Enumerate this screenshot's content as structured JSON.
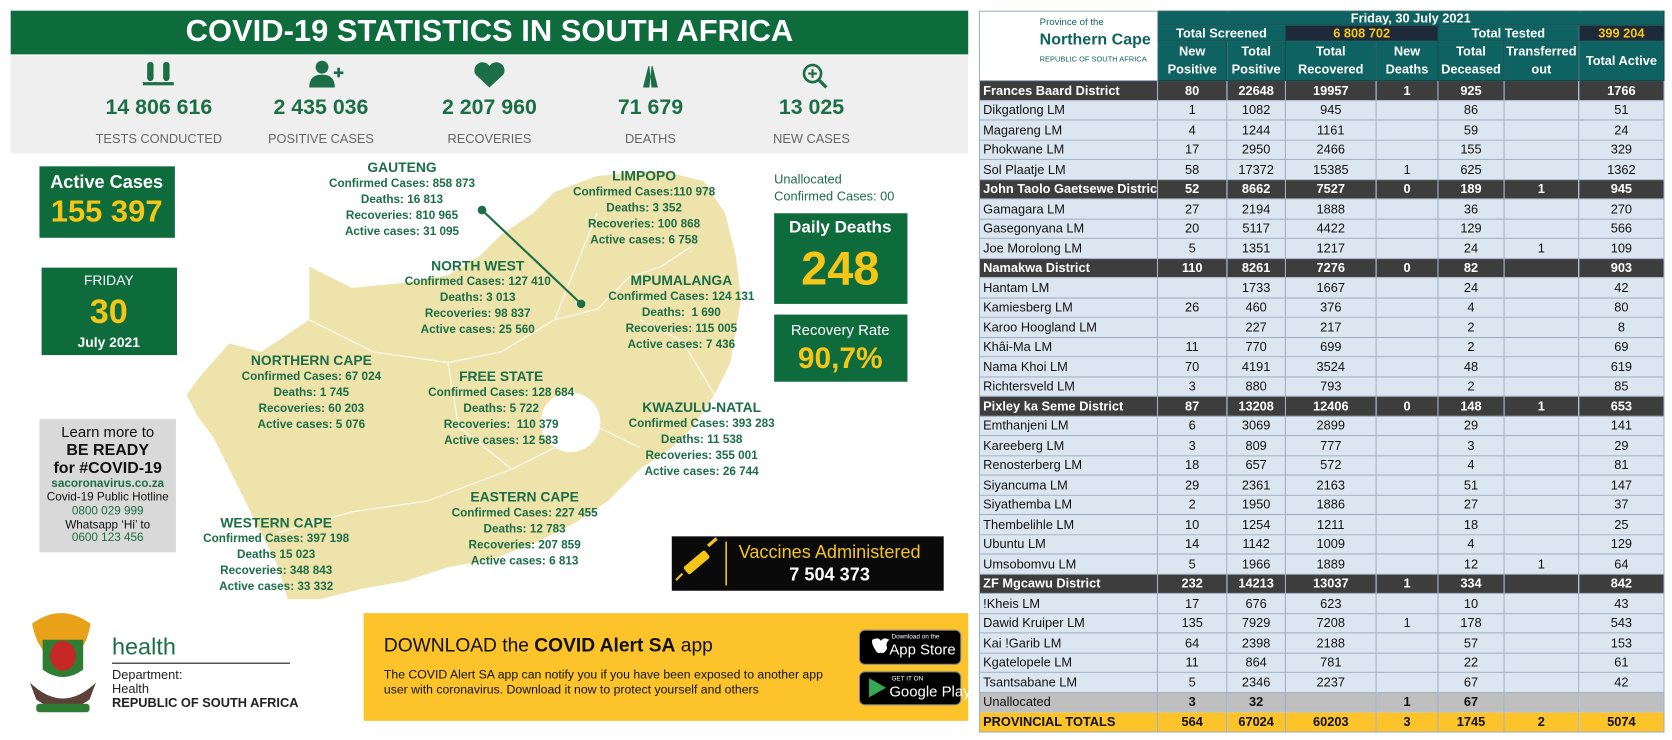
{
  "title": "COVID-19 STATISTICS IN SOUTH AFRICA",
  "stats": [
    {
      "value": "14 806 616",
      "label": "TESTS CONDUCTED"
    },
    {
      "value": "2 435 036",
      "label": "POSITIVE CASES"
    },
    {
      "value": "2 207 960",
      "label": "RECOVERIES"
    },
    {
      "value": "71 679",
      "label": "DEATHS"
    },
    {
      "value": "13 025",
      "label": "NEW CASES"
    }
  ],
  "active_cases": {
    "label": "Active Cases",
    "value": "155 397"
  },
  "date": {
    "weekday": "FRIDAY",
    "day": "30",
    "month_year": "July 2021"
  },
  "unallocated": [
    "Unallocated",
    "Confirmed Cases: 00"
  ],
  "daily_deaths": {
    "label": "Daily Deaths",
    "value": "248"
  },
  "recovery_rate": {
    "label": "Recovery Rate",
    "value": "90,7%"
  },
  "provinces": [
    {
      "name": "GAUTENG",
      "lines": [
        "Confirmed Cases: 858 873",
        "Deaths: 16 813",
        "Recoveries: 810 965",
        "Active cases: 31 095"
      ]
    },
    {
      "name": "LIMPOPO",
      "lines": [
        "Confirmed Cases:110 978",
        "Deaths: 3 352",
        "Recoveries: 100 868",
        "Active cases: 6 758"
      ]
    },
    {
      "name": "NORTH WEST",
      "lines": [
        "Confirmed Cases: 127 410",
        "Deaths: 3 013",
        "Recoveries: 98 837",
        "Active cases: 25 560"
      ]
    },
    {
      "name": "MPUMALANGA",
      "lines": [
        "Confirmed Cases: 124 131",
        "Deaths:  1 690",
        "Recoveries: 115 005",
        "Active cases: 7 436"
      ]
    },
    {
      "name": "NORTHERN CAPE",
      "lines": [
        "Confirmed Cases: 67 024",
        "Deaths: 1 745",
        "Recoveries: 60 203",
        "Active cases: 5 076"
      ]
    },
    {
      "name": "FREE STATE",
      "lines": [
        "Confirmed Cases: 128 684",
        "Deaths: 5 722",
        "Recoveries:  110 379",
        "Active cases: 12 583"
      ]
    },
    {
      "name": "KWAZULU-NATAL",
      "lines": [
        "Confirmed Cases: 393 283",
        "Deaths: 11 538",
        "Recoveries: 355 001",
        "Active cases: 26 744"
      ]
    },
    {
      "name": "EASTERN CAPE",
      "lines": [
        "Confirmed Cases: 227 455",
        "Deaths: 12 783",
        "Recoveries: 207 859",
        "Active cases: 6 813"
      ]
    },
    {
      "name": "WESTERN CAPE",
      "lines": [
        "Confirmed Cases: 397 198",
        "Deaths 15 023",
        "Recoveries: 348 843",
        "Active cases: 33 332"
      ]
    }
  ],
  "learn_more": [
    "Learn more to",
    "BE READY",
    "for #COVID-19",
    "sacoronavirus.co.za",
    "Covid-19 Public Hotline",
    "0800 029 999",
    "Whatsapp ‘Hi’ to",
    "0600 123 456"
  ],
  "vaccines": {
    "label": "Vaccines Administered",
    "value": "7 504 373"
  },
  "department": {
    "health": "health",
    "lines": [
      "Department:",
      "Health",
      "REPUBLIC OF SOUTH AFRICA"
    ]
  },
  "app_banner": {
    "lead": "DOWNLOAD the",
    "app_name": "COVID Alert SA",
    "tail": "app",
    "text": [
      "The COVID Alert SA app can notify you if you have been exposed to another app",
      "user with coronavirus. Download it now to protect yourself and others"
    ],
    "buttons": [
      {
        "small": "Download on the",
        "big": "App Store"
      },
      {
        "small": "GET IT ON",
        "big": "Google Play"
      }
    ]
  },
  "table": {
    "logo": [
      "Province of the",
      "Northern Cape",
      "REPUBLIC OF SOUTH AFRICA"
    ],
    "date": "Friday, 30 July 2021",
    "screened": {
      "label": "Total Screened",
      "value": "6 808 702"
    },
    "tested": {
      "label": "Total Tested",
      "value": "399 204"
    },
    "columns": [
      "New Positive",
      "Total Positive",
      "Total Recovered",
      "New Deaths",
      "Total Deceased",
      "Transferred out",
      "Total Active"
    ],
    "rows": [
      {
        "name": "Frances Baard District",
        "kind": "district",
        "cells": [
          80,
          22648,
          19957,
          1,
          925,
          null,
          1766
        ]
      },
      {
        "name": "Dikgatlong LM",
        "kind": "lm",
        "cells": [
          1,
          1082,
          945,
          null,
          86,
          null,
          51
        ]
      },
      {
        "name": "Magareng LM",
        "kind": "lm",
        "cells": [
          4,
          1244,
          1161,
          null,
          59,
          null,
          24
        ]
      },
      {
        "name": "Phokwane LM",
        "kind": "lm",
        "cells": [
          17,
          2950,
          2466,
          null,
          155,
          null,
          329
        ]
      },
      {
        "name": "Sol Plaatje LM",
        "kind": "lm",
        "cells": [
          58,
          17372,
          15385,
          1,
          625,
          null,
          1362
        ]
      },
      {
        "name": "John Taolo Gaetsewe District",
        "kind": "district",
        "cells": [
          52,
          8662,
          7527,
          0,
          189,
          1,
          945
        ]
      },
      {
        "name": "Gamagara LM",
        "kind": "lm",
        "cells": [
          27,
          2194,
          1888,
          null,
          36,
          null,
          270
        ]
      },
      {
        "name": "Gasegonyana LM",
        "kind": "lm",
        "cells": [
          20,
          5117,
          4422,
          null,
          129,
          null,
          566
        ]
      },
      {
        "name": "Joe Morolong LM",
        "kind": "lm",
        "cells": [
          5,
          1351,
          1217,
          null,
          24,
          1,
          109
        ]
      },
      {
        "name": "Namakwa District",
        "kind": "district",
        "cells": [
          110,
          8261,
          7276,
          0,
          82,
          null,
          903
        ]
      },
      {
        "name": "Hantam LM",
        "kind": "lm",
        "cells": [
          null,
          1733,
          1667,
          null,
          24,
          null,
          42
        ]
      },
      {
        "name": "Kamiesberg LM",
        "kind": "lm",
        "cells": [
          26,
          460,
          376,
          null,
          4,
          null,
          80
        ]
      },
      {
        "name": "Karoo Hoogland LM",
        "kind": "lm",
        "cells": [
          null,
          227,
          217,
          null,
          2,
          null,
          8
        ]
      },
      {
        "name": "Khâi-Ma LM",
        "kind": "lm",
        "cells": [
          11,
          770,
          699,
          null,
          2,
          null,
          69
        ]
      },
      {
        "name": "Nama Khoi LM",
        "kind": "lm",
        "cells": [
          70,
          4191,
          3524,
          null,
          48,
          null,
          619
        ]
      },
      {
        "name": "Richtersveld LM",
        "kind": "lm",
        "cells": [
          3,
          880,
          793,
          null,
          2,
          null,
          85
        ]
      },
      {
        "name": "Pixley ka Seme District",
        "kind": "district",
        "cells": [
          87,
          13208,
          12406,
          0,
          148,
          1,
          653
        ]
      },
      {
        "name": "Emthanjeni LM",
        "kind": "lm",
        "cells": [
          6,
          3069,
          2899,
          null,
          29,
          null,
          141
        ]
      },
      {
        "name": "Kareeberg LM",
        "kind": "lm",
        "cells": [
          3,
          809,
          777,
          null,
          3,
          null,
          29
        ]
      },
      {
        "name": "Renosterberg LM",
        "kind": "lm",
        "cells": [
          18,
          657,
          572,
          null,
          4,
          null,
          81
        ]
      },
      {
        "name": "Siyancuma LM",
        "kind": "lm",
        "cells": [
          29,
          2361,
          2163,
          null,
          51,
          null,
          147
        ]
      },
      {
        "name": "Siyathemba LM",
        "kind": "lm",
        "cells": [
          2,
          1950,
          1886,
          null,
          27,
          null,
          37
        ]
      },
      {
        "name": "Thembelihle LM",
        "kind": "lm",
        "cells": [
          10,
          1254,
          1211,
          null,
          18,
          null,
          25
        ]
      },
      {
        "name": "Ubuntu LM",
        "kind": "lm",
        "cells": [
          14,
          1142,
          1009,
          null,
          4,
          null,
          129
        ]
      },
      {
        "name": "Umsobomvu LM",
        "kind": "lm",
        "cells": [
          5,
          1966,
          1889,
          null,
          12,
          1,
          64
        ]
      },
      {
        "name": "ZF Mgcawu District",
        "kind": "district",
        "cells": [
          232,
          14213,
          13037,
          1,
          334,
          null,
          842
        ]
      },
      {
        "name": "!Kheis LM",
        "kind": "lm",
        "cells": [
          17,
          676,
          623,
          null,
          10,
          null,
          43
        ]
      },
      {
        "name": "Dawid Kruiper LM",
        "kind": "lm",
        "cells": [
          135,
          7929,
          7208,
          1,
          178,
          null,
          543
        ]
      },
      {
        "name": "Kai !Garib LM",
        "kind": "lm",
        "cells": [
          64,
          2398,
          2188,
          null,
          57,
          null,
          153
        ]
      },
      {
        "name": "Kgatelopele LM",
        "kind": "lm",
        "cells": [
          11,
          864,
          781,
          null,
          22,
          null,
          61
        ]
      },
      {
        "name": "Tsantsabane LM",
        "kind": "lm",
        "cells": [
          5,
          2346,
          2237,
          null,
          67,
          null,
          42
        ]
      },
      {
        "name": "Unallocated",
        "kind": "unallocated",
        "cells": [
          3,
          32,
          null,
          1,
          67,
          null,
          null
        ]
      },
      {
        "name": "PROVINCIAL TOTALS",
        "kind": "total",
        "cells": [
          564,
          67024,
          60203,
          3,
          1745,
          2,
          5074
        ]
      }
    ]
  }
}
